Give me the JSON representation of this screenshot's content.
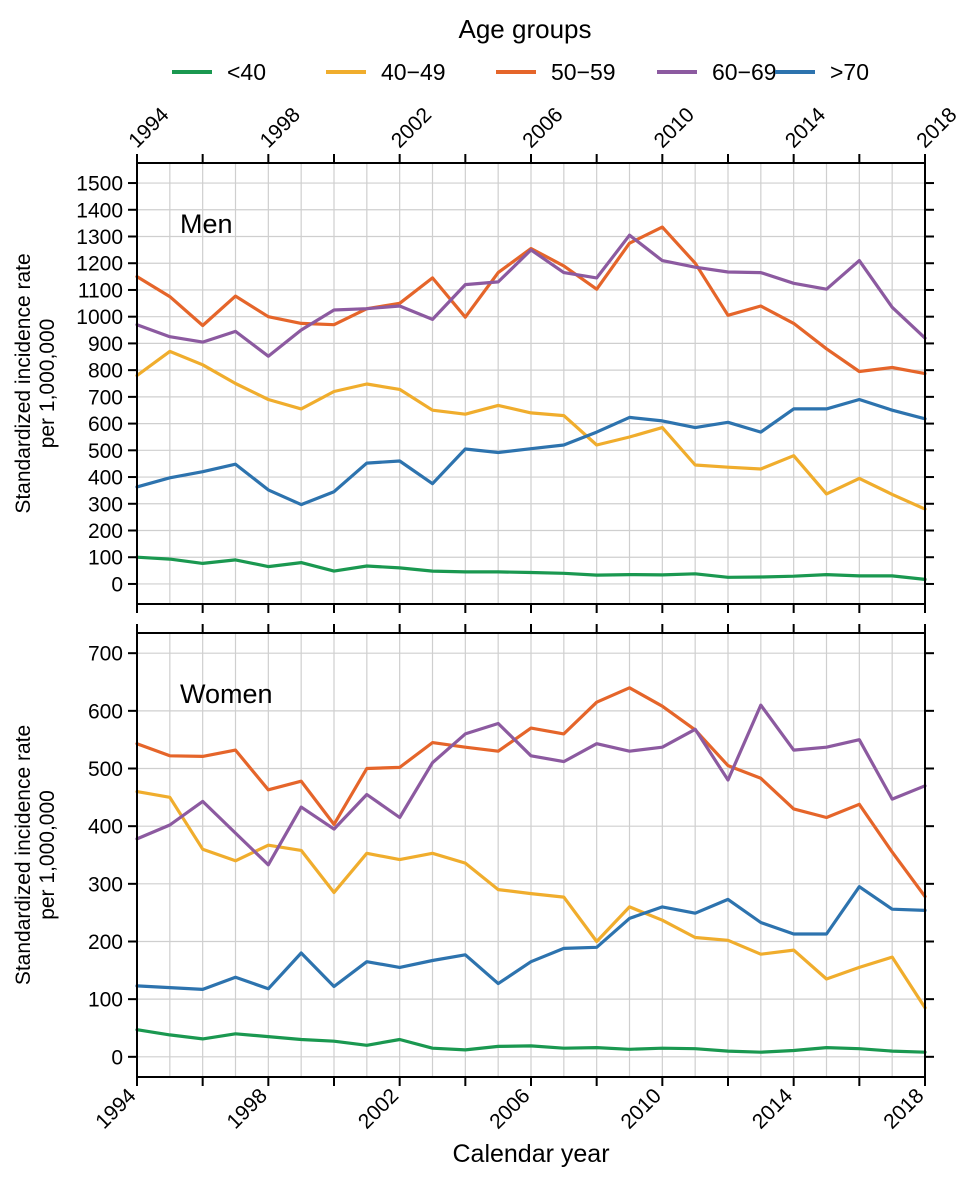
{
  "legend": {
    "title": "Age groups",
    "items": [
      {
        "label": "<40",
        "color": "#1a9850"
      },
      {
        "label": "40−49",
        "color": "#f0ad2d"
      },
      {
        "label": "50−59",
        "color": "#e5652a"
      },
      {
        "label": "60−69",
        "color": "#8c5aa0"
      },
      {
        "label": ">70",
        "color": "#2d73ae"
      }
    ]
  },
  "x_axis": {
    "label": "Calendar year",
    "tick_labels": [
      "1994",
      "1998",
      "2002",
      "2006",
      "2010",
      "2014",
      "2018"
    ]
  },
  "chart_data": [
    {
      "type": "line",
      "title": "Men",
      "ylabel": "Standardized incidence rate per 1,000,000",
      "ylabel_lines": [
        "Standardized incidence rate",
        "per 1,000,000"
      ],
      "xlim": [
        1994,
        2018
      ],
      "ylim": [
        -75,
        1575
      ],
      "yticks": [
        0,
        100,
        200,
        300,
        400,
        500,
        600,
        700,
        800,
        900,
        1000,
        1100,
        1200,
        1300,
        1400,
        1500
      ],
      "grid": true,
      "x": [
        1994,
        1995,
        1996,
        1997,
        1998,
        1999,
        2000,
        2001,
        2002,
        2003,
        2004,
        2005,
        2006,
        2007,
        2008,
        2009,
        2010,
        2011,
        2012,
        2013,
        2014,
        2015,
        2016,
        2017,
        2018
      ],
      "series": [
        {
          "name": "<40",
          "color": "#1a9850",
          "values": [
            100,
            93,
            77,
            90,
            65,
            80,
            48,
            67,
            60,
            48,
            45,
            45,
            43,
            40,
            33,
            35,
            34,
            38,
            25,
            26,
            29,
            35,
            30,
            30,
            17
          ]
        },
        {
          "name": "40−49",
          "color": "#f0ad2d",
          "values": [
            780,
            870,
            820,
            750,
            690,
            655,
            720,
            748,
            728,
            650,
            635,
            668,
            640,
            630,
            520,
            550,
            585,
            445,
            437,
            430,
            480,
            337,
            395,
            335,
            280
          ]
        },
        {
          "name": "50−59",
          "color": "#e5652a",
          "values": [
            1150,
            1075,
            967,
            1077,
            1000,
            975,
            970,
            1030,
            1050,
            1145,
            998,
            1165,
            1255,
            1190,
            1103,
            1275,
            1335,
            1200,
            1005,
            1040,
            975,
            880,
            795,
            810,
            787
          ]
        },
        {
          "name": "60−69",
          "color": "#8c5aa0",
          "values": [
            970,
            925,
            905,
            945,
            852,
            950,
            1025,
            1030,
            1040,
            990,
            1120,
            1130,
            1250,
            1165,
            1145,
            1305,
            1210,
            1185,
            1167,
            1165,
            1125,
            1103,
            1210,
            1035,
            920
          ]
        },
        {
          "name": ">70",
          "color": "#2d73ae",
          "values": [
            363,
            397,
            420,
            448,
            352,
            297,
            345,
            452,
            460,
            375,
            505,
            492,
            506,
            520,
            568,
            623,
            610,
            585,
            605,
            568,
            655,
            655,
            690,
            650,
            618
          ]
        }
      ]
    },
    {
      "type": "line",
      "title": "Women",
      "ylabel": "Standardized incidence rate per 1,000,000",
      "ylabel_lines": [
        "Standardized incidence rate",
        "per 1,000,000"
      ],
      "xlim": [
        1994,
        2018
      ],
      "ylim": [
        -35,
        735
      ],
      "yticks": [
        0,
        100,
        200,
        300,
        400,
        500,
        600,
        700
      ],
      "grid": true,
      "x": [
        1994,
        1995,
        1996,
        1997,
        1998,
        1999,
        2000,
        2001,
        2002,
        2003,
        2004,
        2005,
        2006,
        2007,
        2008,
        2009,
        2010,
        2011,
        2012,
        2013,
        2014,
        2015,
        2016,
        2017,
        2018
      ],
      "series": [
        {
          "name": "<40",
          "color": "#1a9850",
          "values": [
            47,
            38,
            31,
            40,
            35,
            30,
            27,
            20,
            30,
            15,
            12,
            18,
            19,
            15,
            16,
            13,
            15,
            14,
            10,
            8,
            11,
            16,
            14,
            10,
            8
          ]
        },
        {
          "name": "40−49",
          "color": "#f0ad2d",
          "values": [
            460,
            450,
            360,
            340,
            367,
            358,
            285,
            353,
            342,
            353,
            336,
            290,
            283,
            277,
            200,
            260,
            237,
            207,
            202,
            178,
            185,
            135,
            155,
            173,
            85
          ]
        },
        {
          "name": "50−59",
          "color": "#e5652a",
          "values": [
            543,
            522,
            521,
            532,
            463,
            478,
            403,
            500,
            502,
            545,
            537,
            530,
            570,
            560,
            615,
            640,
            608,
            567,
            505,
            483,
            430,
            415,
            438,
            355,
            278
          ]
        },
        {
          "name": "60−69",
          "color": "#8c5aa0",
          "values": [
            378,
            402,
            443,
            388,
            333,
            433,
            395,
            455,
            415,
            510,
            560,
            578,
            522,
            512,
            543,
            530,
            537,
            568,
            480,
            610,
            532,
            537,
            550,
            447,
            470
          ]
        },
        {
          "name": ">70",
          "color": "#2d73ae",
          "values": [
            123,
            120,
            117,
            138,
            118,
            180,
            122,
            165,
            155,
            167,
            177,
            127,
            165,
            188,
            190,
            240,
            260,
            249,
            273,
            233,
            213,
            213,
            295,
            256,
            254
          ]
        }
      ]
    }
  ]
}
